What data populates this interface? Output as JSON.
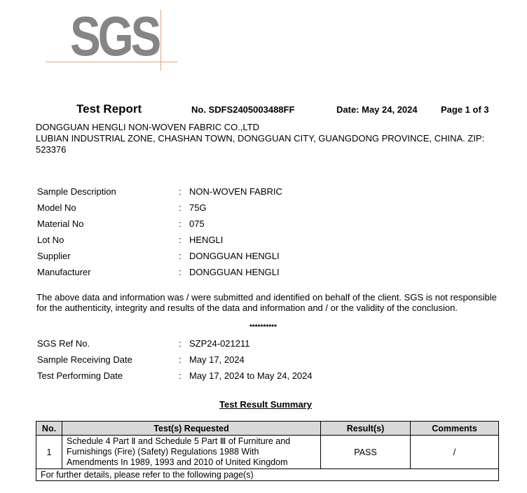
{
  "logo": {
    "text": "SGS",
    "accent_color": "#f0a070",
    "text_color": "#858585"
  },
  "header": {
    "title": "Test Report",
    "number": "No. SDFS2405003488FF",
    "date": "Date: May 24, 2024",
    "page": "Page 1 of 3"
  },
  "client": {
    "name": "DONGGUAN HENGLI NON-WOVEN FABRIC CO.,LTD",
    "address_line1": "LUBIAN INDUSTRIAL ZONE, CHASHAN TOWN, DONGGUAN CITY, GUANGDONG PROVINCE, CHINA. ZIP:",
    "address_line2": "523376"
  },
  "sample": [
    {
      "label": "Sample Description",
      "value": "NON-WOVEN FABRIC"
    },
    {
      "label": "Model No",
      "value": "75G"
    },
    {
      "label": "Material No",
      "value": "075"
    },
    {
      "label": "Lot No",
      "value": "HENGLI"
    },
    {
      "label": "Supplier",
      "value": "DONGGUAN HENGLI"
    },
    {
      "label": "Manufacturer",
      "value": "DONGGUAN HENGLI"
    }
  ],
  "separator": ":",
  "disclaimer_line1": "The above data and information was / were submitted and identified on behalf of the client. SGS is not responsible",
  "disclaimer_line2": "for the authenticity, integrity and results of the data and information and / or the validity of the conclusion.",
  "stars": "**********",
  "ref": [
    {
      "label": "SGS Ref No.",
      "value": "SZP24-021211"
    },
    {
      "label": "Sample Receiving Date",
      "value": "May 17, 2024"
    },
    {
      "label": "Test Performing Date",
      "value": "May 17, 2024 to May 24, 2024"
    }
  ],
  "summary": {
    "title": "Test Result Summary",
    "columns": [
      "No.",
      "Test(s) Requested",
      "Result(s)",
      "Comments"
    ],
    "rows": [
      {
        "no": "1",
        "test_line1": "Schedule 4 Part Ⅱ and Schedule 5 Part Ⅲ of Furniture and",
        "test_line2": "Furnishings (Fire) (Safety) Regulations 1988 With",
        "test_line3": "Amendments In 1989, 1993 and 2010 of United Kingdom",
        "result": "PASS",
        "comments": "/"
      }
    ],
    "footer": "For further details, please refer to the following page(s)"
  }
}
